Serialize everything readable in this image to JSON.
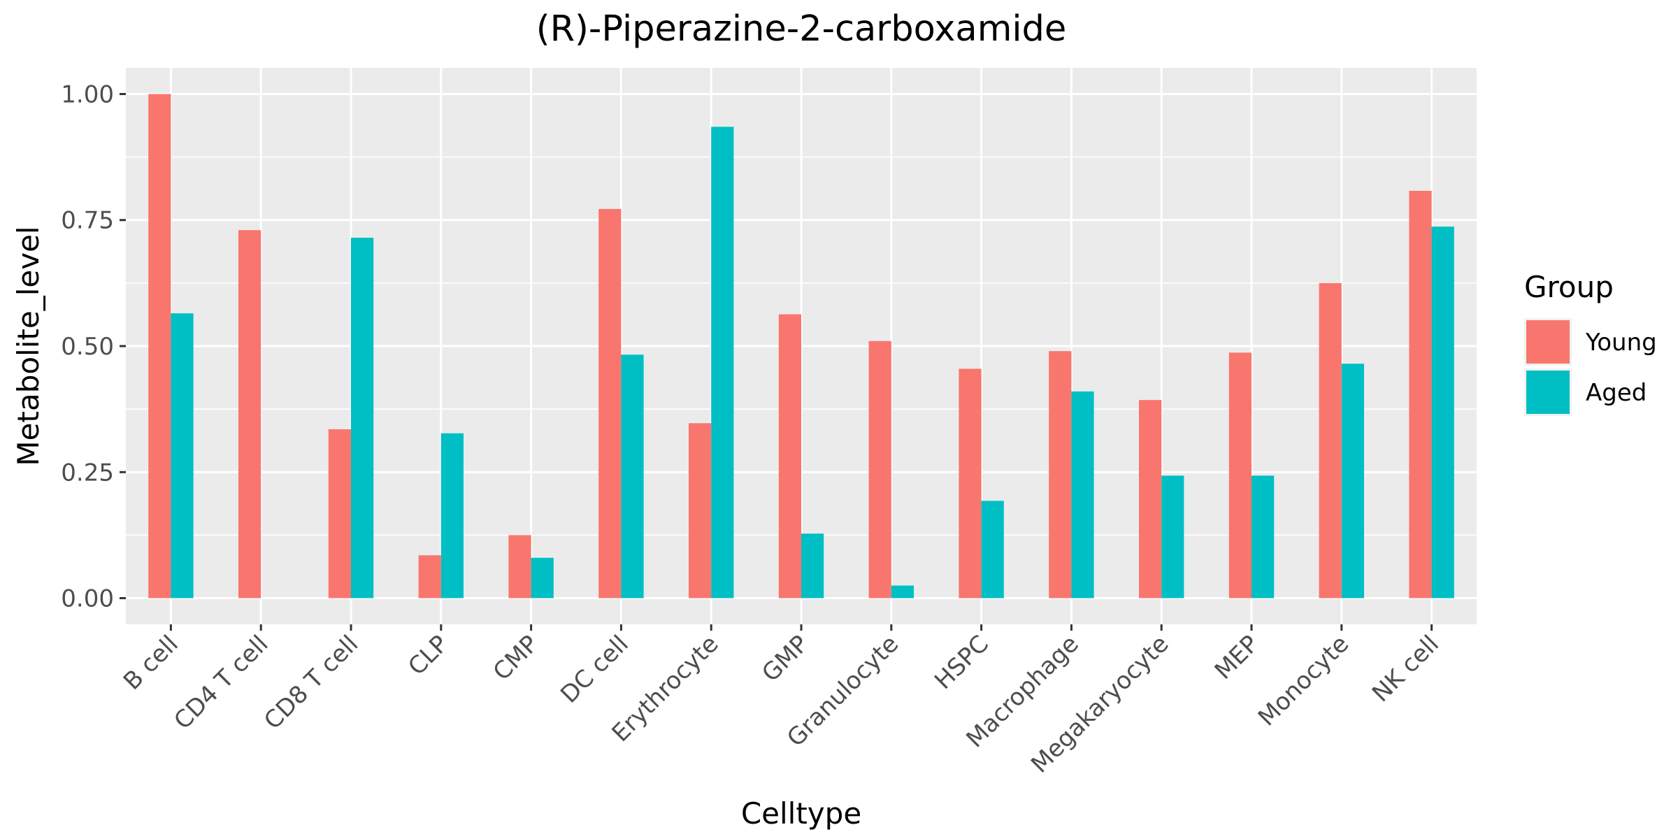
{
  "chart_data": {
    "type": "bar",
    "title": "(R)-Piperazine-2-carboxamide",
    "xlabel": "Celltype",
    "ylabel": "Metabolite_level",
    "ylim": [
      -0.052,
      1.052
    ],
    "yticks": [
      0.0,
      0.25,
      0.5,
      0.75,
      1.0
    ],
    "ytick_labels": [
      "0.00",
      "0.25",
      "0.50",
      "0.75",
      "1.00"
    ],
    "grid": true,
    "legend_position": "right",
    "categories": [
      "B cell",
      "CD4 T cell",
      "CD8 T cell",
      "CLP",
      "CMP",
      "DC cell",
      "Erythrocyte",
      "GMP",
      "Granulocyte",
      "HSPC",
      "Macrophage",
      "Megakaryocyte",
      "MEP",
      "Monocyte",
      "NK cell"
    ],
    "legend_title": "Group",
    "series": [
      {
        "name": "Young",
        "color": "#F8766D",
        "values": [
          1.0,
          0.73,
          0.335,
          0.085,
          0.125,
          0.772,
          0.347,
          0.563,
          0.51,
          0.455,
          0.49,
          0.393,
          0.487,
          0.625,
          0.808
        ]
      },
      {
        "name": "Aged",
        "color": "#00BFC4",
        "values": [
          0.565,
          0.0,
          0.715,
          0.327,
          0.08,
          0.483,
          0.935,
          0.128,
          0.025,
          0.193,
          0.41,
          0.243,
          0.243,
          0.465,
          0.737
        ]
      }
    ]
  }
}
